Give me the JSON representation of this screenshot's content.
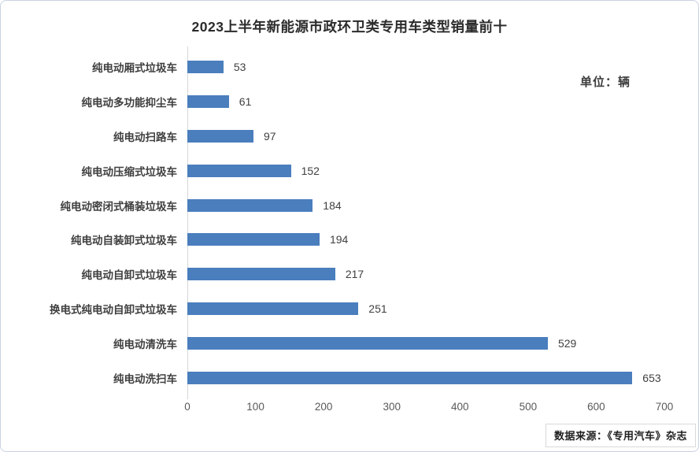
{
  "title": "2023上半年新能源市政环卫类专用车类型销量前十",
  "unit_label": "单位：辆",
  "source_label": "数据来源：《专用汽车》杂志",
  "chart_data": {
    "type": "bar",
    "orientation": "horizontal",
    "title": "2023上半年新能源市政环卫类专用车类型销量前十",
    "unit": "辆",
    "categories": [
      "纯电动厢式垃圾车",
      "纯电动多功能抑尘车",
      "纯电动扫路车",
      "纯电动压缩式垃圾车",
      "纯电动密闭式桶装垃圾车",
      "纯电动自装卸式垃圾车",
      "纯电动自卸式垃圾车",
      "换电式纯电动自卸式垃圾车",
      "纯电动清洗车",
      "纯电动洗扫车"
    ],
    "values": [
      53,
      61,
      97,
      152,
      184,
      194,
      217,
      251,
      529,
      653
    ],
    "xlabel": "",
    "ylabel": "",
    "xlim": [
      0,
      700
    ],
    "xticks": [
      0,
      100,
      200,
      300,
      400,
      500,
      600,
      700
    ],
    "bar_color": "#4a7ebd",
    "grid": "off",
    "legend": "none",
    "value_labels": "end-of-bar"
  }
}
